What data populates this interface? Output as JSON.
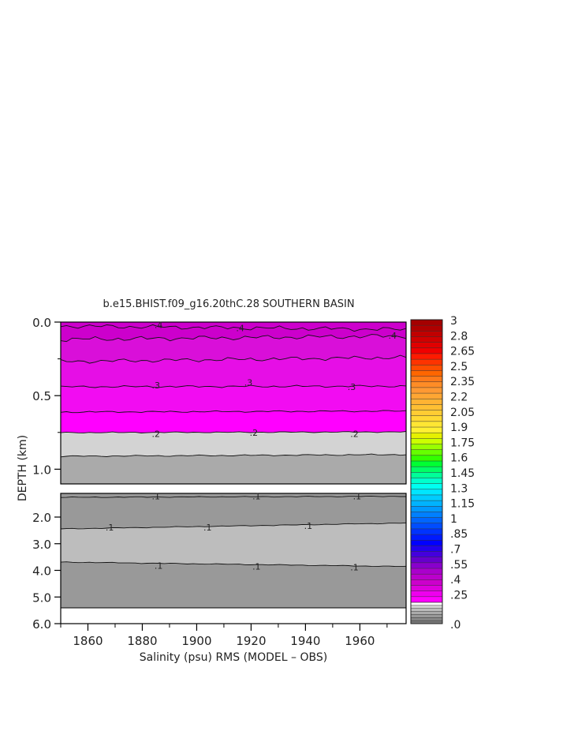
{
  "chart_data": {
    "type": "heatmap",
    "title": "b.e15.BHIST.f09_g16.20thC.28 SOUTHERN BASIN",
    "xlabel": "Salinity (psu) RMS (MODEL – OBS)",
    "ylabel": "DEPTH (km)",
    "x_ticks": [
      "1860",
      "1880",
      "1900",
      "1920",
      "1940",
      "1960"
    ],
    "y_ticks_upper": [
      "0.0",
      "0.5",
      "1.0"
    ],
    "y_ticks_lower": [
      "2.0",
      "3.0",
      "4.0",
      "5.0",
      "6.0"
    ],
    "xlim": [
      1850,
      1977
    ],
    "upper_panel_depth_km": [
      0,
      1.1
    ],
    "lower_panel_depth_km": [
      1.1,
      6.0
    ],
    "colorbar_labels": [
      "3",
      "2.8",
      "2.65",
      "2.5",
      "2.35",
      "2.2",
      "2.05",
      "1.9",
      "1.75",
      "1.6",
      "1.45",
      "1.3",
      "1.15",
      "1",
      ".85",
      ".7",
      ".55",
      ".4",
      ".25",
      ".0"
    ],
    "contour_levels": [
      0.1,
      0.15,
      0.2,
      0.25,
      0.3,
      0.35,
      0.4
    ],
    "contour_labels": [
      {
        "text": ".4",
        "x": 1886,
        "depth": 0.02
      },
      {
        "text": ".4",
        "x": 1916,
        "depth": 0.04
      },
      {
        "text": ".4",
        "x": 1972,
        "depth": 0.09
      },
      {
        "text": ".3",
        "x": 1885,
        "depth": 0.43
      },
      {
        "text": ".3",
        "x": 1919,
        "depth": 0.41
      },
      {
        "text": ".3",
        "x": 1957,
        "depth": 0.44
      },
      {
        "text": ".2",
        "x": 1885,
        "depth": 0.76
      },
      {
        "text": ".2",
        "x": 1921,
        "depth": 0.75
      },
      {
        "text": ".2",
        "x": 1958,
        "depth": 0.76
      },
      {
        "text": ".1",
        "x": 1885,
        "depth": 1.22
      },
      {
        "text": ".1",
        "x": 1922,
        "depth": 1.22
      },
      {
        "text": ".1",
        "x": 1959,
        "depth": 1.22
      },
      {
        "text": ".1",
        "x": 1868,
        "depth": 2.38
      },
      {
        "text": ".1",
        "x": 1904,
        "depth": 2.38
      },
      {
        "text": ".1",
        "x": 1941,
        "depth": 2.32
      },
      {
        "text": ".1",
        "x": 1886,
        "depth": 3.82
      },
      {
        "text": ".1",
        "x": 1922,
        "depth": 3.85
      },
      {
        "text": ".1",
        "x": 1958,
        "depth": 3.88
      }
    ]
  }
}
